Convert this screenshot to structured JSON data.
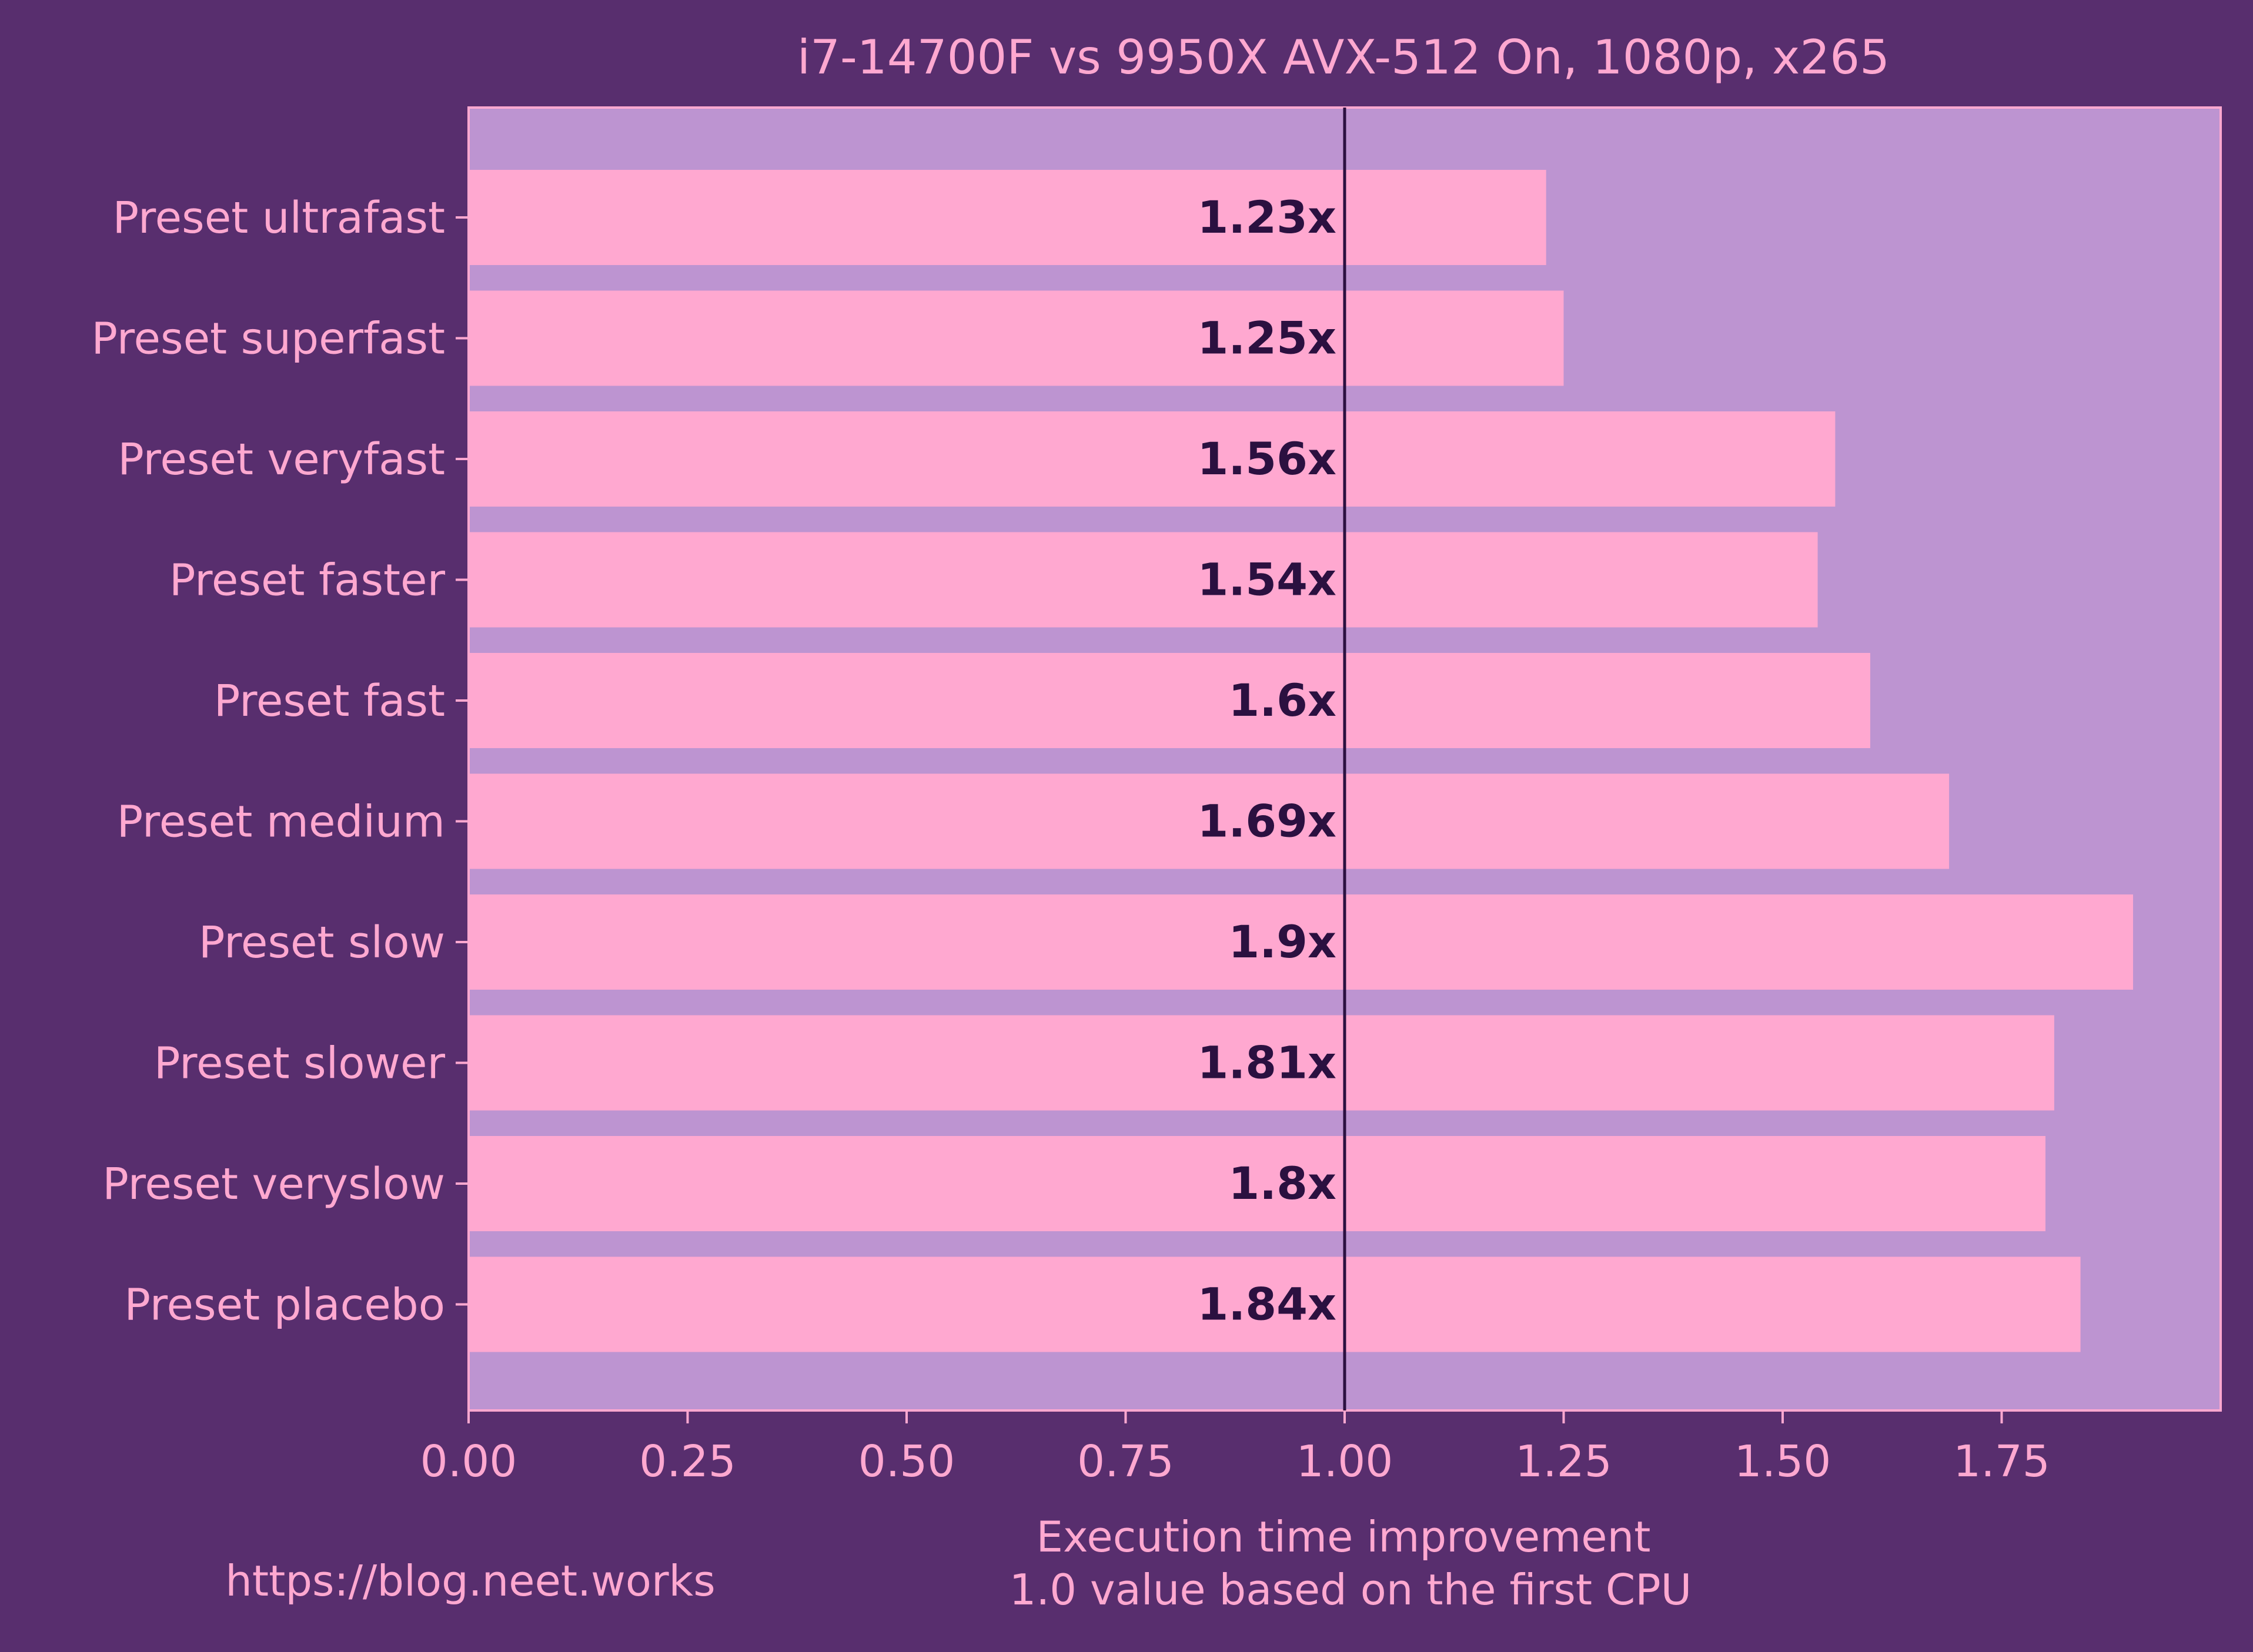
{
  "colors": {
    "figure_background": "#582e6e",
    "plot_background": "#bd94d1",
    "bar_fill": "#ffa8d0",
    "text": "#ffa8d0",
    "value_label": "#2b1040",
    "reference_line": "#2b1040"
  },
  "footer": {
    "source_url": "https://blog.neet.works"
  },
  "chart_data": {
    "type": "bar",
    "orientation": "horizontal",
    "title": "i7-14700F vs 9950X AVX-512 On, 1080p, x265",
    "xlabel": "Execution time improvement\n1.0 value based on the first CPU",
    "ylabel": "",
    "categories": [
      "Preset ultrafast",
      "Preset superfast",
      "Preset veryfast",
      "Preset faster",
      "Preset fast",
      "Preset medium",
      "Preset slow",
      "Preset slower",
      "Preset veryslow",
      "Preset placebo"
    ],
    "values": [
      1.23,
      1.25,
      1.56,
      1.54,
      1.6,
      1.69,
      1.9,
      1.81,
      1.8,
      1.84
    ],
    "value_labels": [
      "1.23x",
      "1.25x",
      "1.56x",
      "1.54x",
      "1.6x",
      "1.69x",
      "1.9x",
      "1.81x",
      "1.8x",
      "1.84x"
    ],
    "xlim": [
      0,
      2.0
    ],
    "xticks": [
      0.0,
      0.25,
      0.5,
      0.75,
      1.0,
      1.25,
      1.5,
      1.75
    ],
    "xtick_labels": [
      "0.00",
      "0.25",
      "0.50",
      "0.75",
      "1.00",
      "1.25",
      "1.50",
      "1.75"
    ],
    "reference_line": 1.0,
    "grid": false,
    "legend": "none"
  }
}
